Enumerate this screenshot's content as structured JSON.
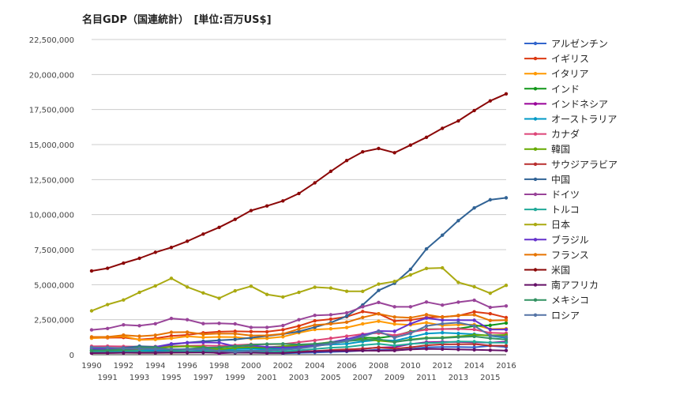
{
  "chart_data": {
    "type": "line",
    "title": "名目GDP（国連統計）　[単位:百万US$]",
    "xlabel": "",
    "ylabel": "",
    "ylim": [
      0,
      22500000
    ],
    "yticks": [
      "0",
      "2,500,000",
      "5,000,000",
      "7,500,000",
      "10,000,000",
      "12,500,000",
      "15,000,000",
      "17,500,000",
      "20,000,000",
      "22,500,000"
    ],
    "ytick_values": [
      0,
      2500000,
      5000000,
      7500000,
      10000000,
      12500000,
      15000000,
      17500000,
      20000000,
      22500000
    ],
    "x": [
      "1990",
      "1991",
      "1992",
      "1993",
      "1994",
      "1995",
      "1996",
      "1997",
      "1998",
      "1999",
      "2000",
      "2001",
      "2002",
      "2003",
      "2004",
      "2005",
      "2006",
      "2007",
      "2008",
      "2009",
      "2010",
      "2011",
      "2012",
      "2013",
      "2014",
      "2015",
      "2016"
    ],
    "grid": true,
    "legend_position": "right",
    "series": [
      {
        "name": "アルゼンチン",
        "color": "#3366cc",
        "values": [
          140000,
          190000,
          230000,
          240000,
          260000,
          260000,
          270000,
          290000,
          300000,
          280000,
          280000,
          270000,
          100000,
          130000,
          160000,
          200000,
          230000,
          290000,
          360000,
          330000,
          420000,
          530000,
          550000,
          550000,
          530000,
          640000,
          550000
        ]
      },
      {
        "name": "イギリス",
        "color": "#dc3912",
        "values": [
          1190000,
          1210000,
          1230000,
          1080000,
          1170000,
          1340000,
          1410000,
          1560000,
          1640000,
          1670000,
          1650000,
          1640000,
          1780000,
          2050000,
          2420000,
          2540000,
          2710000,
          3080000,
          2920000,
          2410000,
          2470000,
          2660000,
          2700000,
          2780000,
          3060000,
          2930000,
          2650000
        ]
      },
      {
        "name": "イタリア",
        "color": "#ff9900",
        "values": [
          1180000,
          1240000,
          1320000,
          1060000,
          1090000,
          1170000,
          1310000,
          1240000,
          1270000,
          1250000,
          1140000,
          1170000,
          1280000,
          1570000,
          1800000,
          1850000,
          1940000,
          2200000,
          2390000,
          2190000,
          2130000,
          2290000,
          2090000,
          2140000,
          2150000,
          1830000,
          1860000
        ]
      },
      {
        "name": "インド",
        "color": "#109618",
        "values": [
          320000,
          270000,
          290000,
          280000,
          330000,
          360000,
          390000,
          420000,
          420000,
          460000,
          470000,
          490000,
          510000,
          600000,
          710000,
          830000,
          940000,
          1220000,
          1200000,
          1340000,
          1660000,
          1820000,
          1830000,
          1860000,
          2040000,
          2100000,
          2260000
        ]
      },
      {
        "name": "インドネシア",
        "color": "#990099",
        "values": [
          110000,
          130000,
          140000,
          160000,
          180000,
          200000,
          230000,
          220000,
          100000,
          160000,
          170000,
          160000,
          200000,
          240000,
          260000,
          290000,
          360000,
          430000,
          510000,
          540000,
          760000,
          890000,
          920000,
          910000,
          890000,
          860000,
          930000
        ]
      },
      {
        "name": "オーストラリア",
        "color": "#0099c6",
        "values": [
          320000,
          320000,
          310000,
          300000,
          330000,
          370000,
          410000,
          420000,
          380000,
          400000,
          420000,
          380000,
          420000,
          530000,
          650000,
          730000,
          780000,
          950000,
          1060000,
          1000000,
          1250000,
          1510000,
          1570000,
          1520000,
          1460000,
          1350000,
          1200000
        ]
      },
      {
        "name": "カナダ",
        "color": "#dd4477",
        "values": [
          600000,
          610000,
          590000,
          580000,
          580000,
          600000,
          630000,
          650000,
          630000,
          680000,
          740000,
          740000,
          760000,
          890000,
          1020000,
          1170000,
          1320000,
          1470000,
          1550000,
          1380000,
          1610000,
          1790000,
          1830000,
          1840000,
          1800000,
          1560000,
          1530000
        ]
      },
      {
        "name": "韓国",
        "color": "#66aa00",
        "values": [
          280000,
          330000,
          350000,
          390000,
          460000,
          560000,
          600000,
          560000,
          380000,
          490000,
          560000,
          530000,
          610000,
          680000,
          760000,
          900000,
          1010000,
          1120000,
          1000000,
          900000,
          1090000,
          1200000,
          1220000,
          1300000,
          1410000,
          1380000,
          1410000
        ]
      },
      {
        "name": "サウジアラビア",
        "color": "#b82e2e",
        "values": [
          120000,
          130000,
          140000,
          130000,
          130000,
          140000,
          160000,
          170000,
          150000,
          160000,
          190000,
          180000,
          190000,
          220000,
          260000,
          330000,
          380000,
          420000,
          520000,
          430000,
          530000,
          670000,
          740000,
          750000,
          760000,
          650000,
          640000
        ]
      },
      {
        "name": "中国",
        "color": "#316395",
        "values": [
          400000,
          410000,
          490000,
          610000,
          560000,
          730000,
          860000,
          960000,
          1030000,
          1090000,
          1210000,
          1340000,
          1470000,
          1660000,
          1960000,
          2290000,
          2750000,
          3550000,
          4590000,
          5100000,
          6090000,
          7550000,
          8530000,
          9570000,
          10480000,
          11060000,
          11200000
        ]
      },
      {
        "name": "ドイツ",
        "color": "#994499",
        "values": [
          1770000,
          1870000,
          2130000,
          2070000,
          2210000,
          2590000,
          2500000,
          2220000,
          2240000,
          2200000,
          1950000,
          1950000,
          2080000,
          2500000,
          2810000,
          2850000,
          2990000,
          3420000,
          3730000,
          3420000,
          3420000,
          3760000,
          3540000,
          3750000,
          3890000,
          3380000,
          3480000
        ]
      },
      {
        "name": "トルコ",
        "color": "#22aa99",
        "values": [
          200000,
          200000,
          210000,
          240000,
          170000,
          230000,
          240000,
          250000,
          270000,
          250000,
          270000,
          200000,
          240000,
          310000,
          410000,
          500000,
          550000,
          680000,
          770000,
          650000,
          770000,
          830000,
          870000,
          950000,
          930000,
          860000,
          860000
        ]
      },
      {
        "name": "日本",
        "color": "#aaaa11",
        "values": [
          3130000,
          3580000,
          3910000,
          4450000,
          4910000,
          5450000,
          4830000,
          4410000,
          4030000,
          4560000,
          4890000,
          4300000,
          4120000,
          4450000,
          4820000,
          4760000,
          4530000,
          4520000,
          5040000,
          5230000,
          5700000,
          6160000,
          6200000,
          5160000,
          4850000,
          4390000,
          4950000
        ]
      },
      {
        "name": "ブラジル",
        "color": "#6633cc",
        "values": [
          460000,
          400000,
          390000,
          440000,
          560000,
          770000,
          850000,
          880000,
          860000,
          600000,
          660000,
          560000,
          510000,
          560000,
          670000,
          890000,
          1110000,
          1400000,
          1690000,
          1670000,
          2210000,
          2620000,
          2470000,
          2470000,
          2460000,
          1800000,
          1800000
        ]
      },
      {
        "name": "フランス",
        "color": "#e67300",
        "values": [
          1270000,
          1270000,
          1400000,
          1320000,
          1390000,
          1600000,
          1610000,
          1460000,
          1510000,
          1500000,
          1370000,
          1380000,
          1490000,
          1840000,
          2120000,
          2200000,
          2320000,
          2660000,
          2920000,
          2690000,
          2640000,
          2860000,
          2680000,
          2810000,
          2850000,
          2440000,
          2470000
        ]
      },
      {
        "name": "米国",
        "color": "#8b0707",
        "values": [
          5980000,
          6170000,
          6540000,
          6880000,
          7310000,
          7660000,
          8100000,
          8610000,
          9090000,
          9660000,
          10290000,
          10620000,
          10980000,
          11510000,
          12270000,
          13090000,
          13860000,
          14480000,
          14720000,
          14420000,
          14960000,
          15520000,
          16160000,
          16690000,
          17430000,
          18120000,
          18620000
        ]
      },
      {
        "name": "南アフリカ",
        "color": "#651067",
        "values": [
          120000,
          130000,
          140000,
          140000,
          140000,
          160000,
          150000,
          150000,
          140000,
          140000,
          140000,
          120000,
          120000,
          180000,
          230000,
          260000,
          270000,
          300000,
          290000,
          300000,
          380000,
          420000,
          400000,
          370000,
          350000,
          320000,
          300000
        ]
      },
      {
        "name": "メキシコ",
        "color": "#329262",
        "values": [
          290000,
          330000,
          370000,
          520000,
          530000,
          360000,
          410000,
          500000,
          530000,
          600000,
          710000,
          760000,
          770000,
          730000,
          780000,
          870000,
          970000,
          1050000,
          1110000,
          900000,
          1050000,
          1170000,
          1190000,
          1260000,
          1300000,
          1170000,
          1080000
        ]
      },
      {
        "name": "ロシア",
        "color": "#5574a6",
        "values": [
          520000,
          510000,
          460000,
          430000,
          400000,
          400000,
          390000,
          400000,
          270000,
          200000,
          260000,
          310000,
          350000,
          430000,
          590000,
          770000,
          990000,
          1300000,
          1660000,
          1220000,
          1520000,
          2050000,
          2210000,
          2290000,
          2060000,
          1370000,
          1280000
        ]
      }
    ]
  }
}
